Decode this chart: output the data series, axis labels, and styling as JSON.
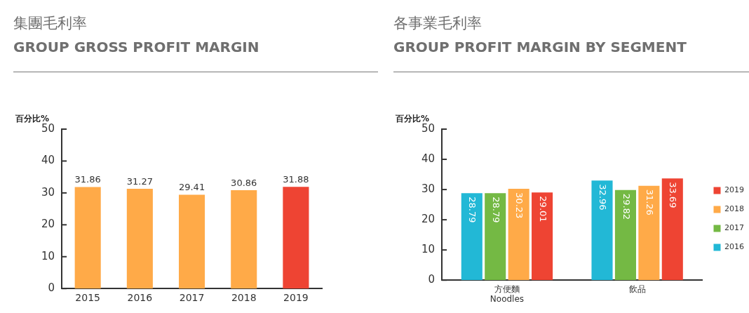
{
  "chart_data": [
    {
      "type": "bar",
      "title": "集團毛利率",
      "subtitle": "GROUP GROSS PROFIT MARGIN",
      "ylabel": "百分比%",
      "categories": [
        "2015",
        "2016",
        "2017",
        "2018",
        "2019"
      ],
      "values": [
        31.86,
        31.27,
        29.41,
        30.86,
        31.88
      ],
      "colors": [
        "#ffaa48",
        "#ffaa48",
        "#ffaa48",
        "#ffaa48",
        "#ee4433"
      ],
      "ylim": [
        0,
        50
      ],
      "yticks": [
        0,
        10,
        20,
        30,
        40,
        50
      ],
      "data_labels": true
    },
    {
      "type": "bar",
      "title": "各事業毛利率",
      "subtitle": "GROUP PROFIT MARGIN BY SEGMENT",
      "ylabel": "百分比%",
      "categories": [
        "方便麵\nNoodles",
        "飲品"
      ],
      "series": [
        {
          "name": "2016",
          "color": "#22b8d6",
          "values": [
            28.79,
            32.96
          ]
        },
        {
          "name": "2017",
          "color": "#74b944",
          "values": [
            28.79,
            29.82
          ]
        },
        {
          "name": "2018",
          "color": "#ffaa48",
          "values": [
            30.23,
            31.26
          ]
        },
        {
          "name": "2019",
          "color": "#ee4433",
          "values": [
            29.01,
            33.69
          ]
        }
      ],
      "ylim": [
        0,
        50
      ],
      "yticks": [
        0,
        10,
        20,
        30,
        40,
        50
      ],
      "data_labels": true,
      "legend": "right"
    }
  ]
}
